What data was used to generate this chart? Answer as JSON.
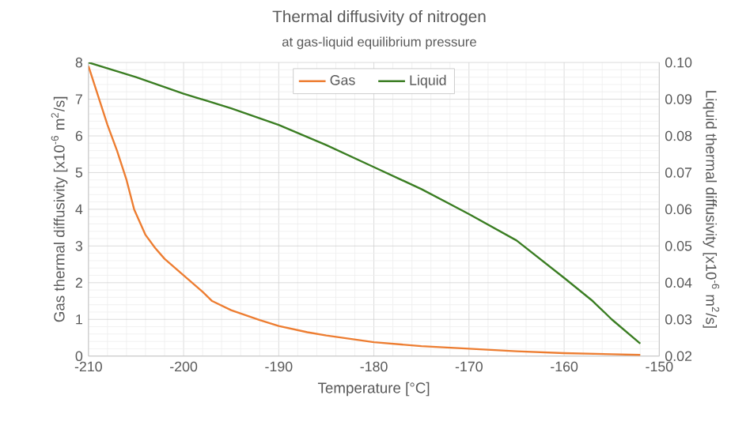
{
  "chart_data": {
    "type": "line",
    "title": "Thermal diffusivity of nitrogen",
    "subtitle": "at gas-liquid equilibrium pressure",
    "xlabel": "Temperature [°C]",
    "ylabel": "Gas thermal diffusivity [x10$^{-6}$ m$^{2}$/s]",
    "y2label": "Liquid thermal diffusivity [x10$^{-6}$ m$^{2}$/s]",
    "xlim": [
      -210,
      -150
    ],
    "xticks": [
      -210,
      -200,
      -190,
      -180,
      -170,
      -160,
      -150
    ],
    "ylim": [
      0,
      8
    ],
    "yticks": [
      0,
      1,
      2,
      3,
      4,
      5,
      6,
      7,
      8
    ],
    "y2lim": [
      0.02,
      0.1
    ],
    "y2ticks": [
      0.02,
      0.03,
      0.04,
      0.05,
      0.06,
      0.07,
      0.08,
      0.09,
      {
        "value": 0.1,
        "label": "0.10"
      }
    ],
    "grid": true,
    "legend": "top",
    "line_style": "solid",
    "marker": "none",
    "series": [
      {
        "name": "Gas",
        "color": "#ed7d31",
        "x": [
          -210,
          -209,
          -208,
          -207,
          -206,
          -205.2,
          -204,
          -203,
          -202,
          -200,
          -198,
          -197,
          -195,
          -192,
          -190,
          -187,
          -185,
          -180,
          -175,
          -170,
          -165,
          -160,
          -155,
          -152
        ],
        "values": [
          7.9,
          7.1,
          6.3,
          5.6,
          4.8,
          4.0,
          3.3,
          2.95,
          2.65,
          2.2,
          1.75,
          1.5,
          1.25,
          0.98,
          0.82,
          0.65,
          0.56,
          0.38,
          0.27,
          0.2,
          0.13,
          0.08,
          0.05,
          0.03
        ]
      },
      {
        "name": "Liquid",
        "color": "#3a7d22",
        "axis": "y2",
        "x": [
          -210,
          -205,
          -200,
          -195,
          -190,
          -185,
          -180,
          -175,
          -170,
          -165,
          -160,
          -157,
          -155,
          -152
        ],
        "values": [
          0.1,
          0.096,
          0.0915,
          0.0875,
          0.083,
          0.0775,
          0.0715,
          0.0655,
          0.0587,
          0.0515,
          0.0413,
          0.035,
          0.03,
          0.0234
        ]
      }
    ]
  }
}
